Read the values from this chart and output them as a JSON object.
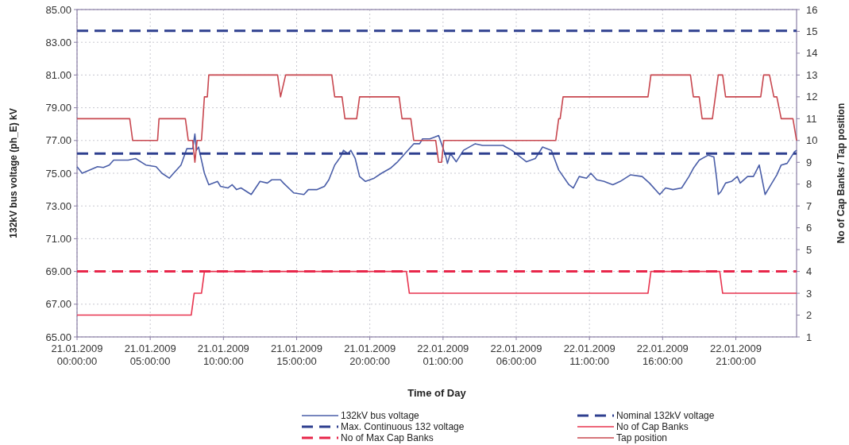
{
  "chart_data": {
    "type": "line",
    "xlabel": "Time of Day",
    "ylabel": "132kV bus voltage (ph_E) kV",
    "y2label": "No of Cap Banks / Tap position",
    "xlim": [
      "2009-01-21T00:00",
      "2009-01-23T01:09"
    ],
    "xticks": [
      {
        "value": "2009-01-21T00:00",
        "label": "21.01.2009\n00:00:00"
      },
      {
        "value": "2009-01-21T05:00",
        "label": "21.01.2009\n05:00:00"
      },
      {
        "value": "2009-01-21T10:00",
        "label": "21.01.2009\n10:00:00"
      },
      {
        "value": "2009-01-21T15:00",
        "label": "21.01.2009\n15:00:00"
      },
      {
        "value": "2009-01-21T20:00",
        "label": "21.01.2009\n20:00:00"
      },
      {
        "value": "2009-01-22T01:00",
        "label": "22.01.2009\n01:00:00"
      },
      {
        "value": "2009-01-22T06:00",
        "label": "22.01.2009\n06:00:00"
      },
      {
        "value": "2009-01-22T11:00",
        "label": "22.01.2009\n11:00:00"
      },
      {
        "value": "2009-01-22T16:00",
        "label": "22.01.2009\n16:00:00"
      },
      {
        "value": "2009-01-22T21:00",
        "label": "22.01.2009\n21:00:00"
      }
    ],
    "ylim": [
      65,
      85
    ],
    "yticks": [
      {
        "value": 65,
        "label": "65.00"
      },
      {
        "value": 67,
        "label": "67.00"
      },
      {
        "value": 69,
        "label": "69.00"
      },
      {
        "value": 71,
        "label": "71.00"
      },
      {
        "value": 73,
        "label": "73.00"
      },
      {
        "value": 75,
        "label": "75.00"
      },
      {
        "value": 77,
        "label": "77.00"
      },
      {
        "value": 79,
        "label": "79.00"
      },
      {
        "value": 81,
        "label": "81.00"
      },
      {
        "value": 83,
        "label": "83.00"
      },
      {
        "value": 85,
        "label": "85.00"
      }
    ],
    "y2lim": [
      1,
      16
    ],
    "y2ticks": [
      1,
      2,
      3,
      4,
      5,
      6,
      7,
      8,
      9,
      10,
      11,
      12,
      13,
      14,
      15,
      16
    ],
    "grid": true,
    "legend": "bottom",
    "series": [
      {
        "name": "132kV bus voltage",
        "color": "#4a5ea8",
        "line_style": "solid",
        "x": [
          "2009-01-21T00:00",
          "2009-01-21T00:21",
          "2009-01-21T01:24",
          "2009-01-21T01:48",
          "2009-01-21T02:12",
          "2009-01-21T02:30",
          "2009-01-21T03:30",
          "2009-01-21T04:00",
          "2009-01-21T04:42",
          "2009-01-21T05:24",
          "2009-01-21T05:48",
          "2009-01-21T06:18",
          "2009-01-21T06:30",
          "2009-01-21T07:06",
          "2009-01-21T07:30",
          "2009-01-21T07:54",
          "2009-01-21T08:03",
          "2009-01-21T08:09",
          "2009-01-21T08:18",
          "2009-01-21T08:42",
          "2009-01-21T09:00",
          "2009-01-21T09:36",
          "2009-01-21T09:48",
          "2009-01-21T10:18",
          "2009-01-21T10:36",
          "2009-01-21T10:54",
          "2009-01-21T11:12",
          "2009-01-21T11:54",
          "2009-01-21T12:30",
          "2009-01-21T13:00",
          "2009-01-21T13:18",
          "2009-01-21T13:54",
          "2009-01-21T14:06",
          "2009-01-21T14:48",
          "2009-01-21T15:30",
          "2009-01-21T15:48",
          "2009-01-21T16:24",
          "2009-01-21T16:54",
          "2009-01-21T17:12",
          "2009-01-21T17:36",
          "2009-01-21T18:00",
          "2009-01-21T18:12",
          "2009-01-21T18:30",
          "2009-01-21T18:42",
          "2009-01-21T19:00",
          "2009-01-21T19:18",
          "2009-01-21T19:42",
          "2009-01-21T20:18",
          "2009-01-21T20:48",
          "2009-01-21T21:24",
          "2009-01-21T21:54",
          "2009-01-21T22:24",
          "2009-01-21T23:00",
          "2009-01-21T23:24",
          "2009-01-21T23:36",
          "2009-01-22T00:06",
          "2009-01-22T00:24",
          "2009-01-22T00:42",
          "2009-01-22T00:54",
          "2009-01-22T01:12",
          "2009-01-22T01:18",
          "2009-01-22T01:30",
          "2009-01-22T01:54",
          "2009-01-22T02:24",
          "2009-01-22T03:12",
          "2009-01-22T03:42",
          "2009-01-22T05:06",
          "2009-01-22T05:42",
          "2009-01-22T06:42",
          "2009-01-22T07:18",
          "2009-01-22T07:48",
          "2009-01-22T08:24",
          "2009-01-22T08:54",
          "2009-01-22T09:36",
          "2009-01-22T09:54",
          "2009-01-22T10:18",
          "2009-01-22T10:48",
          "2009-01-22T11:06",
          "2009-01-22T11:30",
          "2009-01-22T12:00",
          "2009-01-22T12:36",
          "2009-01-22T13:06",
          "2009-01-22T13:48",
          "2009-01-22T14:36",
          "2009-01-22T15:06",
          "2009-01-22T15:48",
          "2009-01-22T16:12",
          "2009-01-22T16:42",
          "2009-01-22T17:18",
          "2009-01-22T17:48",
          "2009-01-22T18:06",
          "2009-01-22T18:30",
          "2009-01-22T19:06",
          "2009-01-22T19:30",
          "2009-01-22T19:42",
          "2009-01-22T19:48",
          "2009-01-22T20:00",
          "2009-01-22T20:18",
          "2009-01-22T20:42",
          "2009-01-22T21:06",
          "2009-01-22T21:18",
          "2009-01-22T21:48",
          "2009-01-22T22:12",
          "2009-01-22T22:36",
          "2009-01-22T23:00",
          "2009-01-22T23:24",
          "2009-01-22T23:48",
          "2009-01-23T00:06",
          "2009-01-23T00:30",
          "2009-01-23T01:00",
          "2009-01-23T01:09"
        ],
        "values": [
          75.4,
          75.0,
          75.4,
          75.35,
          75.5,
          75.8,
          75.8,
          75.9,
          75.5,
          75.4,
          75.0,
          74.7,
          74.9,
          75.5,
          76.5,
          76.5,
          77.4,
          76.4,
          76.6,
          75.0,
          74.3,
          74.5,
          74.2,
          74.1,
          74.3,
          74.0,
          74.1,
          73.7,
          74.5,
          74.4,
          74.6,
          74.6,
          74.4,
          73.8,
          73.7,
          74.0,
          74.0,
          74.2,
          74.6,
          75.5,
          76.0,
          76.4,
          76.2,
          76.4,
          75.9,
          74.8,
          74.5,
          74.7,
          75.0,
          75.3,
          75.7,
          76.2,
          76.8,
          76.8,
          77.1,
          77.1,
          77.2,
          77.3,
          76.8,
          76.0,
          75.6,
          76.2,
          75.7,
          76.4,
          76.8,
          76.7,
          76.7,
          76.4,
          75.7,
          75.9,
          76.6,
          76.4,
          75.2,
          74.3,
          74.1,
          74.8,
          74.7,
          75.0,
          74.6,
          74.5,
          74.3,
          74.5,
          74.9,
          74.8,
          74.4,
          73.7,
          74.1,
          74.0,
          74.1,
          74.8,
          75.3,
          75.8,
          76.1,
          76.0,
          74.6,
          73.7,
          73.9,
          74.4,
          74.5,
          74.8,
          74.4,
          74.8,
          74.8,
          75.5,
          73.7,
          74.3,
          74.9,
          75.5,
          75.6,
          76.3,
          76.4
        ]
      },
      {
        "name": "Nominal 132kV voltage",
        "color": "#2e3f8f",
        "line_style": "dashed",
        "x": [
          "2009-01-21T00:00",
          "2009-01-23T01:09"
        ],
        "values": [
          76.2,
          76.2
        ]
      },
      {
        "name": "Max. Continuous 132 voltage",
        "color": "#2e3f8f",
        "line_style": "dashed",
        "x": [
          "2009-01-21T00:00",
          "2009-01-23T01:09"
        ],
        "values": [
          83.7,
          83.7
        ]
      },
      {
        "name": "No of Cap Banks",
        "color": "#e8344f",
        "line_style": "solid",
        "axis": "y2",
        "x": [
          "2009-01-21T00:00",
          "2009-01-21T07:48",
          "2009-01-21T08:00",
          "2009-01-21T08:30",
          "2009-01-21T08:42",
          "2009-01-21T22:30",
          "2009-01-21T22:42",
          "2009-01-22T15:00",
          "2009-01-22T15:12",
          "2009-01-22T19:54",
          "2009-01-22T20:06",
          "2009-01-23T01:09"
        ],
        "values": [
          2,
          2,
          3,
          3,
          4,
          4,
          3,
          3,
          4,
          4,
          3,
          3
        ]
      },
      {
        "name": "No of Max Cap Banks",
        "color": "#e8264a",
        "line_style": "dashed",
        "axis": "y2",
        "x": [
          "2009-01-21T00:00",
          "2009-01-23T01:09"
        ],
        "values": [
          4,
          4
        ]
      },
      {
        "name": "Tap position",
        "color": "#c8474f",
        "line_style": "solid",
        "axis": "y2",
        "x": [
          "2009-01-21T00:00",
          "2009-01-21T03:36",
          "2009-01-21T03:48",
          "2009-01-21T05:30",
          "2009-01-21T05:36",
          "2009-01-21T07:24",
          "2009-01-21T07:36",
          "2009-01-21T07:54",
          "2009-01-21T08:03",
          "2009-01-21T08:12",
          "2009-01-21T08:30",
          "2009-01-21T08:42",
          "2009-01-21T08:54",
          "2009-01-21T09:00",
          "2009-01-21T13:42",
          "2009-01-21T13:54",
          "2009-01-21T14:15",
          "2009-01-21T17:24",
          "2009-01-21T17:36",
          "2009-01-21T18:06",
          "2009-01-21T18:18",
          "2009-01-21T19:06",
          "2009-01-21T19:18",
          "2009-01-21T22:00",
          "2009-01-21T22:12",
          "2009-01-21T22:48",
          "2009-01-21T23:00",
          "2009-01-22T00:30",
          "2009-01-22T00:42",
          "2009-01-22T00:54",
          "2009-01-22T01:03",
          "2009-01-22T08:42",
          "2009-01-22T08:54",
          "2009-01-22T09:00",
          "2009-01-22T09:12",
          "2009-01-22T15:00",
          "2009-01-22T15:12",
          "2009-01-22T17:54",
          "2009-01-22T18:06",
          "2009-01-22T18:30",
          "2009-01-22T18:42",
          "2009-01-22T19:24",
          "2009-01-22T19:48",
          "2009-01-22T20:06",
          "2009-01-22T20:18",
          "2009-01-22T22:42",
          "2009-01-22T22:54",
          "2009-01-22T23:18",
          "2009-01-22T23:36",
          "2009-01-22T23:48",
          "2009-01-23T00:06",
          "2009-01-23T00:54",
          "2009-01-23T01:09"
        ],
        "values": [
          11,
          11,
          10,
          10,
          11,
          11,
          10,
          10,
          9,
          10,
          10,
          12,
          12,
          13,
          13,
          12,
          13,
          13,
          12,
          12,
          11,
          11,
          12,
          12,
          11,
          11,
          10,
          10,
          9,
          9,
          10,
          10,
          11,
          11,
          12,
          12,
          13,
          13,
          12,
          12,
          11,
          11,
          13,
          13,
          12,
          12,
          13,
          13,
          12,
          12,
          11,
          11,
          10
        ]
      }
    ]
  }
}
